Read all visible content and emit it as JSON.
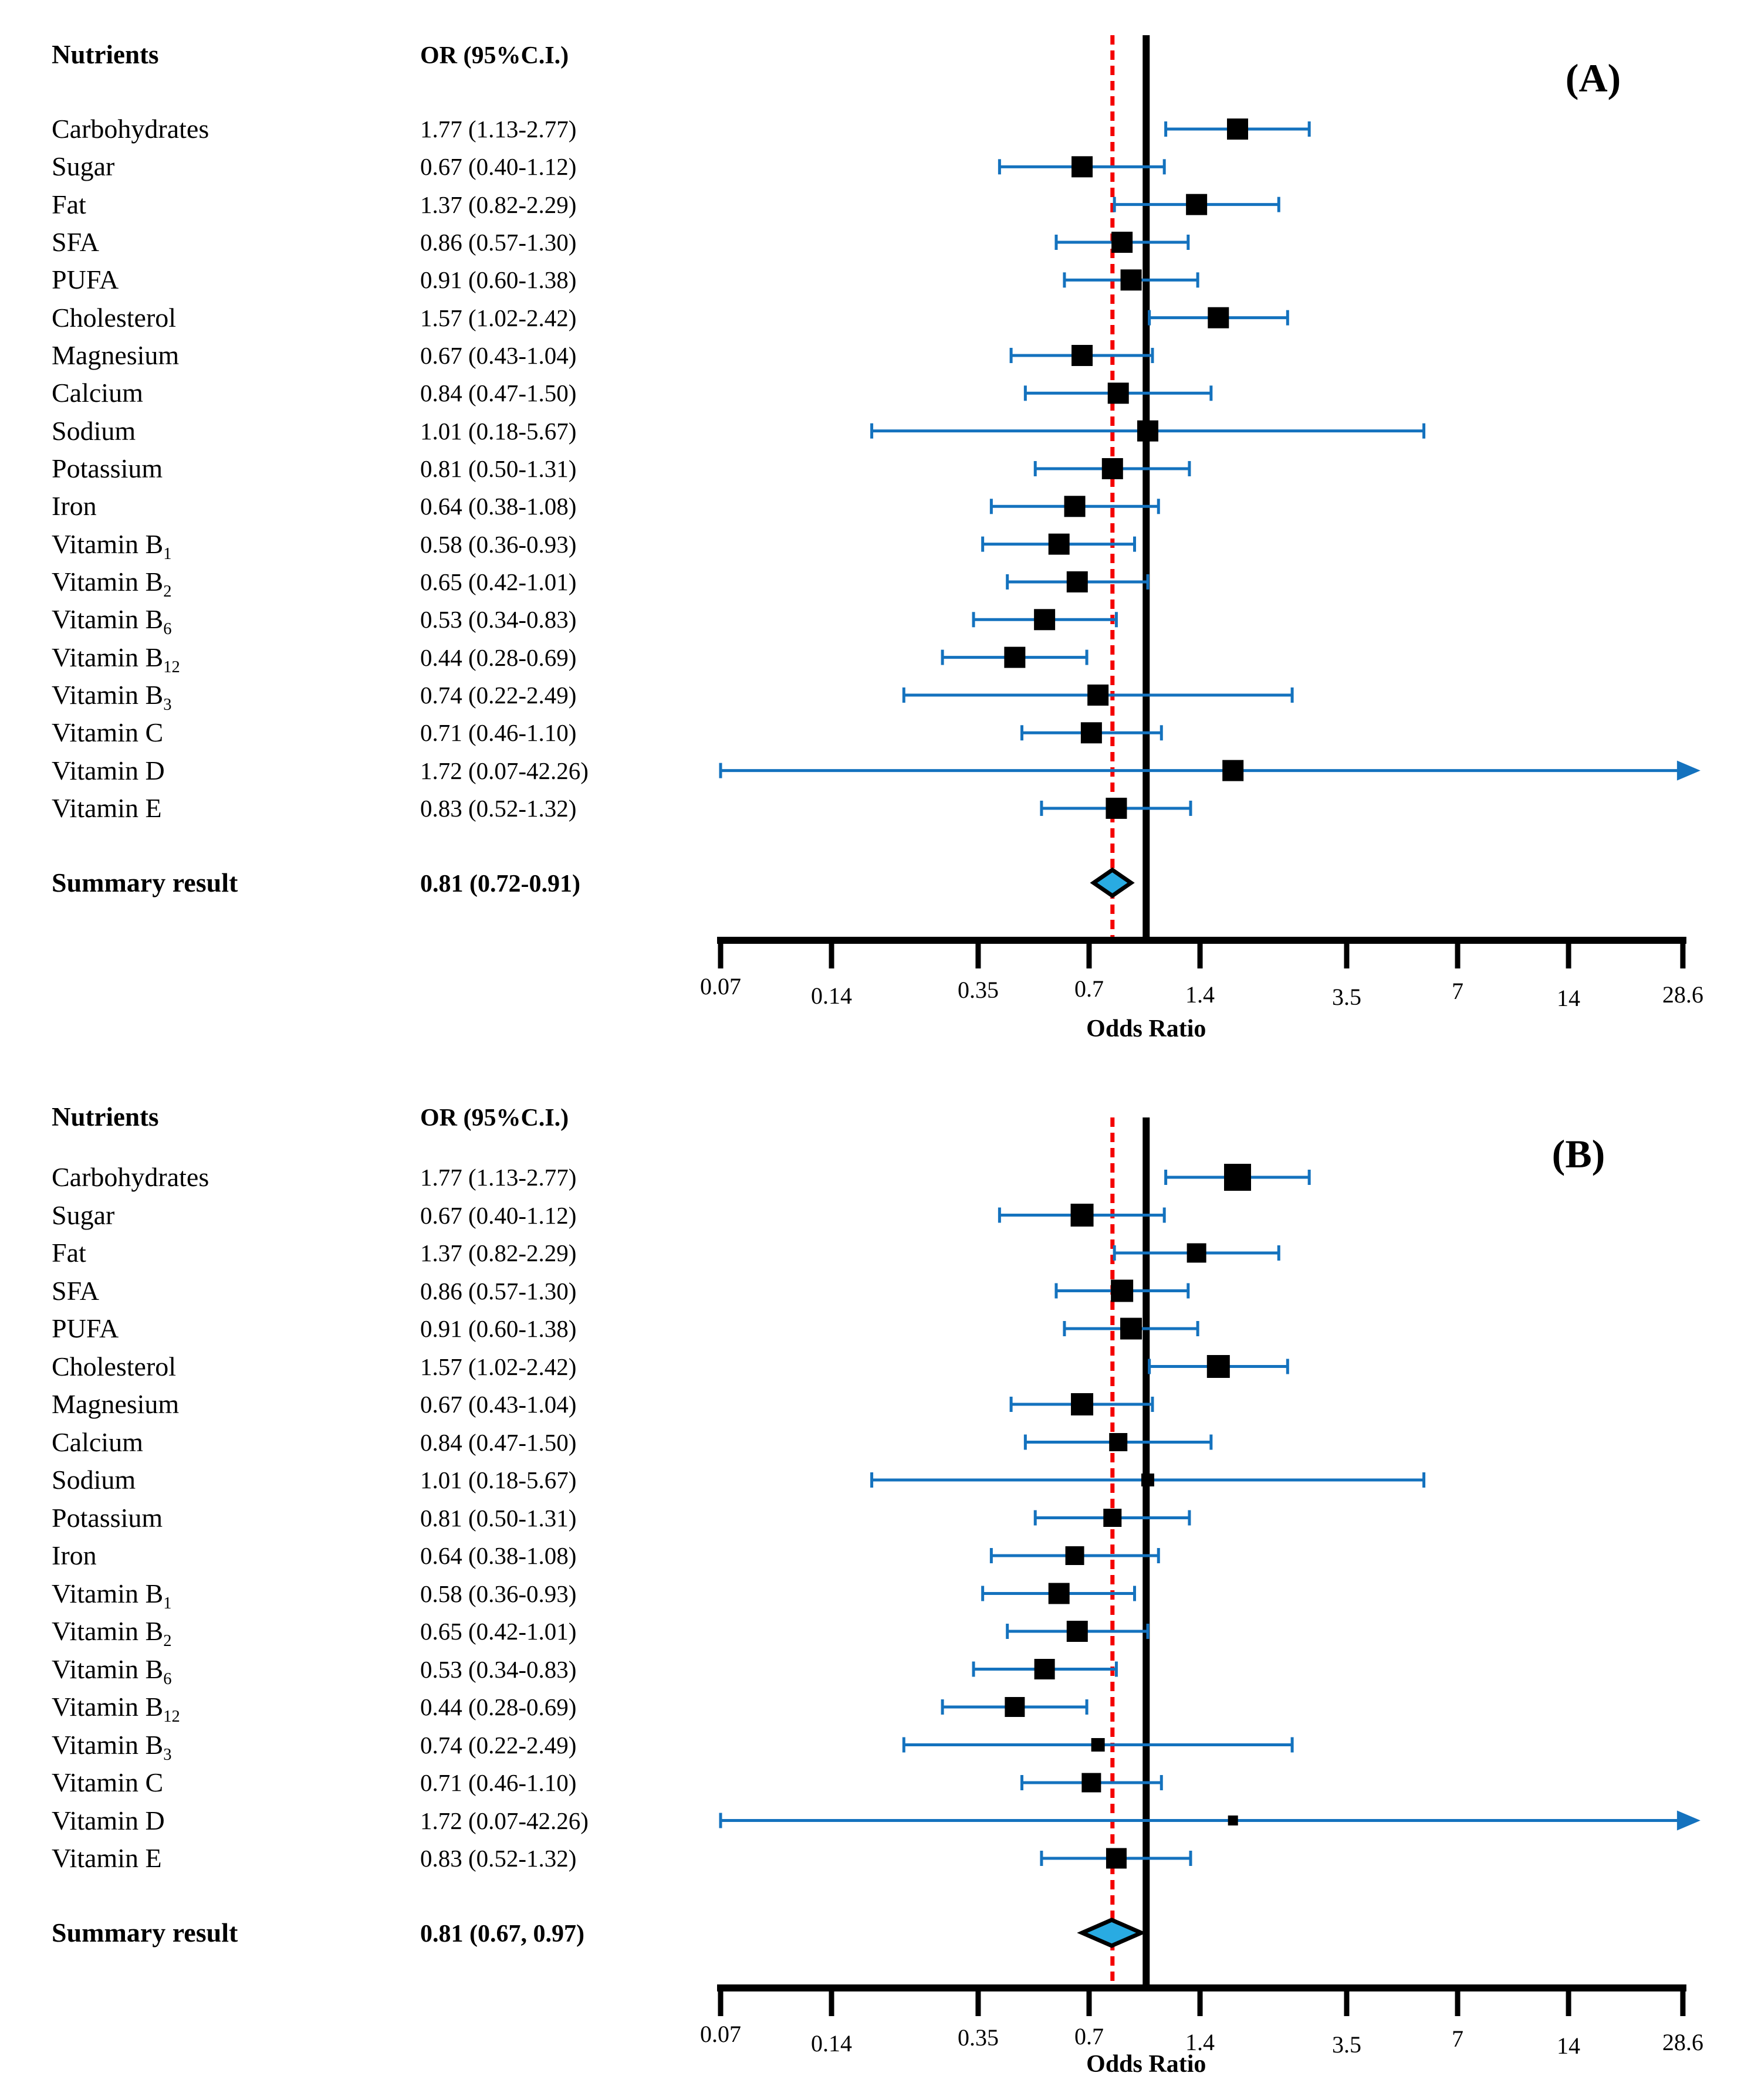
{
  "figure": {
    "background": "#ffffff",
    "colors": {
      "ci_line": "#1472BE",
      "marker": "#000000",
      "axis": "#000000",
      "reference_line": "#000000",
      "summary_reference_line": "#F40000",
      "summary_diamond_fill": "#29ABE2",
      "summary_diamond_border": "#000000"
    }
  },
  "chart_data": {
    "type": "forest",
    "x_axis": {
      "label": "Odds Ratio",
      "scale": "log",
      "min": 0.07,
      "max": 28.6,
      "ticks": [
        "0.07",
        "0.14",
        "0.35",
        "0.7",
        "1.4",
        "3.5",
        "7",
        "14",
        "28.6"
      ],
      "reference_line": 1.0,
      "summary_line": 0.81
    },
    "panels": [
      {
        "label": "(A)",
        "col_nutrients": "Nutrients",
        "col_or": "OR (95%C.I.)",
        "xlabel": "Odds Ratio",
        "rows": [
          {
            "name": "Carbohydrates",
            "sub": "",
            "display": "1.77 (1.13-2.77)",
            "or": 1.77,
            "lo": 1.13,
            "hi": 2.77,
            "size": 36,
            "arrow_hi": false
          },
          {
            "name": "Sugar",
            "sub": "",
            "display": "0.67 (0.40-1.12)",
            "or": 0.67,
            "lo": 0.4,
            "hi": 1.12,
            "size": 36,
            "arrow_hi": false
          },
          {
            "name": "Fat",
            "sub": "",
            "display": "1.37 (0.82-2.29)",
            "or": 1.37,
            "lo": 0.82,
            "hi": 2.29,
            "size": 36,
            "arrow_hi": false
          },
          {
            "name": "SFA",
            "sub": "",
            "display": "0.86 (0.57-1.30)",
            "or": 0.86,
            "lo": 0.57,
            "hi": 1.3,
            "size": 36,
            "arrow_hi": false
          },
          {
            "name": "PUFA",
            "sub": "",
            "display": "0.91 (0.60-1.38)",
            "or": 0.91,
            "lo": 0.6,
            "hi": 1.38,
            "size": 36,
            "arrow_hi": false
          },
          {
            "name": "Cholesterol",
            "sub": "",
            "display": "1.57 (1.02-2.42)",
            "or": 1.57,
            "lo": 1.02,
            "hi": 2.42,
            "size": 36,
            "arrow_hi": false
          },
          {
            "name": "Magnesium",
            "sub": "",
            "display": "0.67 (0.43-1.04)",
            "or": 0.67,
            "lo": 0.43,
            "hi": 1.04,
            "size": 36,
            "arrow_hi": false
          },
          {
            "name": "Calcium",
            "sub": "",
            "display": "0.84 (0.47-1.50)",
            "or": 0.84,
            "lo": 0.47,
            "hi": 1.5,
            "size": 36,
            "arrow_hi": false
          },
          {
            "name": "Sodium",
            "sub": "",
            "display": "1.01 (0.18-5.67)",
            "or": 1.01,
            "lo": 0.18,
            "hi": 5.67,
            "size": 36,
            "arrow_hi": false
          },
          {
            "name": "Potassium",
            "sub": "",
            "display": "0.81 (0.50-1.31)",
            "or": 0.81,
            "lo": 0.5,
            "hi": 1.31,
            "size": 36,
            "arrow_hi": false
          },
          {
            "name": "Iron",
            "sub": "",
            "display": "0.64 (0.38-1.08)",
            "or": 0.64,
            "lo": 0.38,
            "hi": 1.08,
            "size": 36,
            "arrow_hi": false
          },
          {
            "name": "Vitamin B",
            "sub": "1",
            "display": "0.58 (0.36-0.93)",
            "or": 0.58,
            "lo": 0.36,
            "hi": 0.93,
            "size": 36,
            "arrow_hi": false
          },
          {
            "name": "Vitamin B",
            "sub": "2",
            "display": "0.65 (0.42-1.01)",
            "or": 0.65,
            "lo": 0.42,
            "hi": 1.01,
            "size": 36,
            "arrow_hi": false
          },
          {
            "name": "Vitamin B",
            "sub": "6",
            "display": "0.53 (0.34-0.83)",
            "or": 0.53,
            "lo": 0.34,
            "hi": 0.83,
            "size": 36,
            "arrow_hi": false
          },
          {
            "name": "Vitamin B",
            "sub": "12",
            "display": "0.44 (0.28-0.69)",
            "or": 0.44,
            "lo": 0.28,
            "hi": 0.69,
            "size": 36,
            "arrow_hi": false
          },
          {
            "name": "Vitamin B",
            "sub": "3",
            "display": "0.74 (0.22-2.49)",
            "or": 0.74,
            "lo": 0.22,
            "hi": 2.49,
            "size": 36,
            "arrow_hi": false
          },
          {
            "name": "Vitamin C",
            "sub": "",
            "display": "0.71 (0.46-1.10)",
            "or": 0.71,
            "lo": 0.46,
            "hi": 1.1,
            "size": 36,
            "arrow_hi": false
          },
          {
            "name": "Vitamin D",
            "sub": "",
            "display": "1.72 (0.07-42.26)",
            "or": 1.72,
            "lo": 0.07,
            "hi": 42.26,
            "size": 36,
            "arrow_hi": true
          },
          {
            "name": "Vitamin E",
            "sub": "",
            "display": "0.83 (0.52-1.32)",
            "or": 0.83,
            "lo": 0.52,
            "hi": 1.32,
            "size": 36,
            "arrow_hi": false
          }
        ],
        "summary": {
          "label": "Summary result",
          "display": "0.81 (0.72-0.91)",
          "or": 0.81,
          "lo": 0.72,
          "hi": 0.91
        }
      },
      {
        "label": "(B)",
        "col_nutrients": "Nutrients",
        "col_or": "OR (95%C.I.)",
        "xlabel": "Odds Ratio",
        "rows": [
          {
            "name": "Carbohydrates",
            "sub": "",
            "display": "1.77 (1.13-2.77)",
            "or": 1.77,
            "lo": 1.13,
            "hi": 2.77,
            "size": 46,
            "arrow_hi": false
          },
          {
            "name": "Sugar",
            "sub": "",
            "display": "0.67 (0.40-1.12)",
            "or": 0.67,
            "lo": 0.4,
            "hi": 1.12,
            "size": 39,
            "arrow_hi": false
          },
          {
            "name": "Fat",
            "sub": "",
            "display": "1.37 (0.82-2.29)",
            "or": 1.37,
            "lo": 0.82,
            "hi": 2.29,
            "size": 33,
            "arrow_hi": false
          },
          {
            "name": "SFA",
            "sub": "",
            "display": "0.86 (0.57-1.30)",
            "or": 0.86,
            "lo": 0.57,
            "hi": 1.3,
            "size": 38,
            "arrow_hi": false
          },
          {
            "name": "PUFA",
            "sub": "",
            "display": "0.91 (0.60-1.38)",
            "or": 0.91,
            "lo": 0.6,
            "hi": 1.38,
            "size": 37,
            "arrow_hi": false
          },
          {
            "name": "Cholesterol",
            "sub": "",
            "display": "1.57 (1.02-2.42)",
            "or": 1.57,
            "lo": 1.02,
            "hi": 2.42,
            "size": 39,
            "arrow_hi": false
          },
          {
            "name": "Magnesium",
            "sub": "",
            "display": "0.67 (0.43-1.04)",
            "or": 0.67,
            "lo": 0.43,
            "hi": 1.04,
            "size": 38,
            "arrow_hi": false
          },
          {
            "name": "Calcium",
            "sub": "",
            "display": "0.84 (0.47-1.50)",
            "or": 0.84,
            "lo": 0.47,
            "hi": 1.5,
            "size": 31,
            "arrow_hi": false
          },
          {
            "name": "Sodium",
            "sub": "",
            "display": "1.01 (0.18-5.67)",
            "or": 1.01,
            "lo": 0.18,
            "hi": 5.67,
            "size": 22,
            "arrow_hi": false
          },
          {
            "name": "Potassium",
            "sub": "",
            "display": "0.81 (0.50-1.31)",
            "or": 0.81,
            "lo": 0.5,
            "hi": 1.31,
            "size": 31,
            "arrow_hi": false
          },
          {
            "name": "Iron",
            "sub": "",
            "display": "0.64 (0.38-1.08)",
            "or": 0.64,
            "lo": 0.38,
            "hi": 1.08,
            "size": 32,
            "arrow_hi": false
          },
          {
            "name": "Vitamin B",
            "sub": "1",
            "display": "0.58 (0.36-0.93)",
            "or": 0.58,
            "lo": 0.36,
            "hi": 0.93,
            "size": 36,
            "arrow_hi": false
          },
          {
            "name": "Vitamin B",
            "sub": "2",
            "display": "0.65 (0.42-1.01)",
            "or": 0.65,
            "lo": 0.42,
            "hi": 1.01,
            "size": 36,
            "arrow_hi": false
          },
          {
            "name": "Vitamin B",
            "sub": "6",
            "display": "0.53 (0.34-0.83)",
            "or": 0.53,
            "lo": 0.34,
            "hi": 0.83,
            "size": 35,
            "arrow_hi": false
          },
          {
            "name": "Vitamin B",
            "sub": "12",
            "display": "0.44 (0.28-0.69)",
            "or": 0.44,
            "lo": 0.28,
            "hi": 0.69,
            "size": 34,
            "arrow_hi": false
          },
          {
            "name": "Vitamin B",
            "sub": "3",
            "display": "0.74 (0.22-2.49)",
            "or": 0.74,
            "lo": 0.22,
            "hi": 2.49,
            "size": 23,
            "arrow_hi": false
          },
          {
            "name": "Vitamin C",
            "sub": "",
            "display": "0.71 (0.46-1.10)",
            "or": 0.71,
            "lo": 0.46,
            "hi": 1.1,
            "size": 33,
            "arrow_hi": false
          },
          {
            "name": "Vitamin D",
            "sub": "",
            "display": "1.72 (0.07-42.26)",
            "or": 1.72,
            "lo": 0.07,
            "hi": 42.26,
            "size": 17,
            "arrow_hi": true
          },
          {
            "name": "Vitamin E",
            "sub": "",
            "display": "0.83 (0.52-1.32)",
            "or": 0.83,
            "lo": 0.52,
            "hi": 1.32,
            "size": 35,
            "arrow_hi": false
          }
        ],
        "summary": {
          "label": "Summary result",
          "display": "0.81 (0.67,  0.97)",
          "or": 0.81,
          "lo": 0.67,
          "hi": 0.97
        }
      }
    ]
  }
}
